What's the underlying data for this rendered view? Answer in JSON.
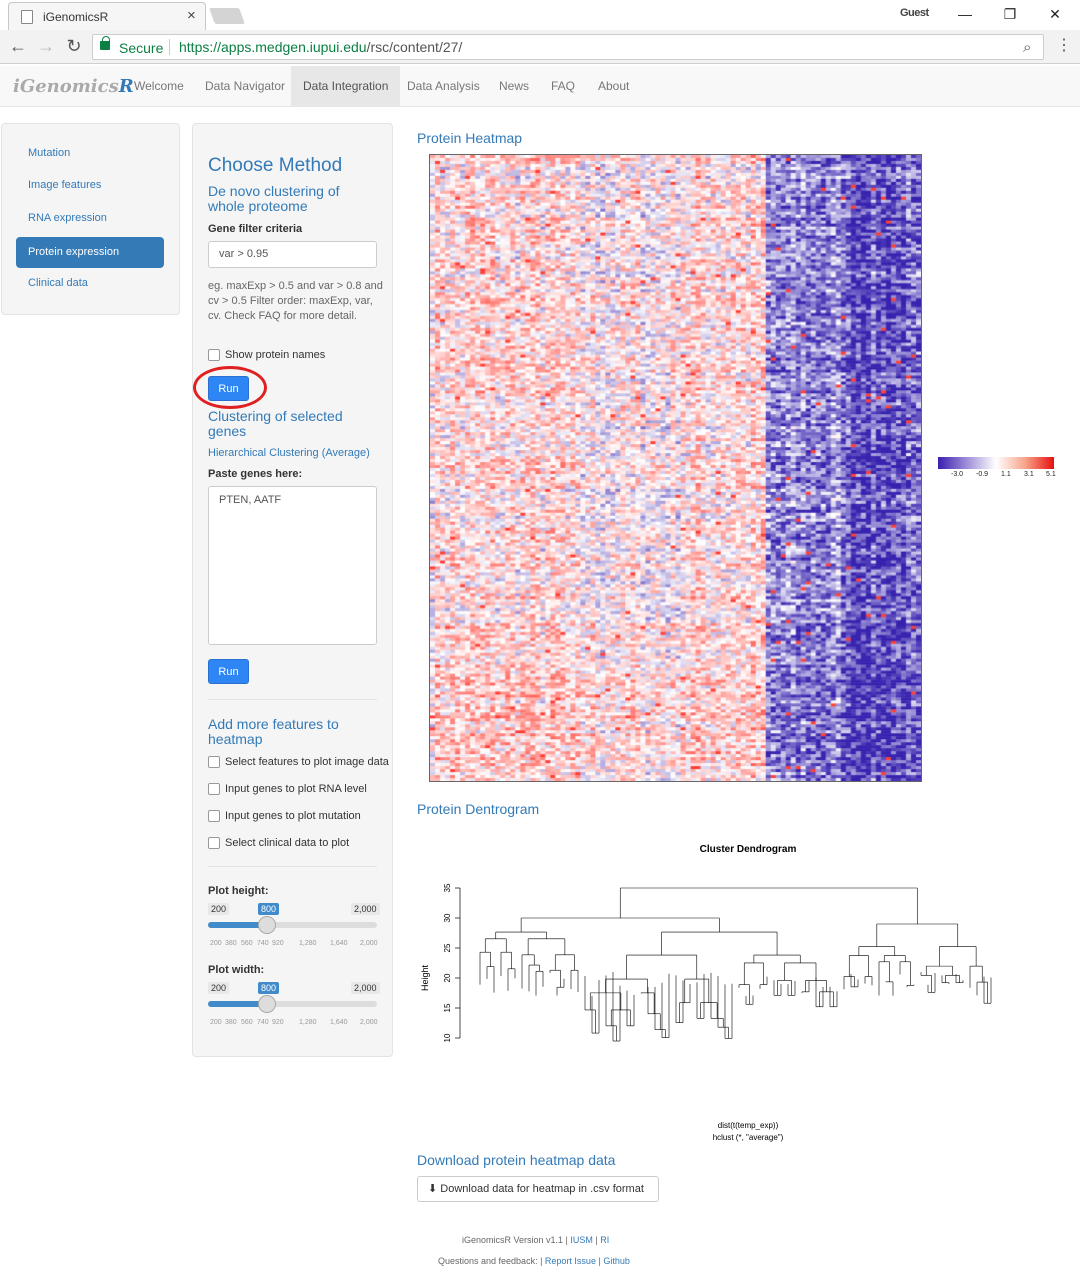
{
  "browser": {
    "tab_title": "iGenomicsR",
    "guest_label": "Guest",
    "secure_label": "Secure",
    "url_host": "https://apps.medgen.iupui.edu",
    "url_path": "/rsc/content/27/"
  },
  "navbar": {
    "brand_prefix": "iGenomics",
    "brand_suffix": "R",
    "items": [
      "Welcome",
      "Data Navigator",
      "Data Integration",
      "Data Analysis",
      "News",
      "FAQ",
      "About"
    ],
    "active": "Data Integration"
  },
  "sidebar": {
    "items": [
      "Mutation",
      "Image features",
      "RNA expression",
      "Protein expression",
      "Clinical data"
    ],
    "active": "Protein expression"
  },
  "panel": {
    "title": "Choose Method",
    "denovo_heading": "De novo clustering of whole proteome",
    "filter_label": "Gene filter criteria",
    "filter_value": "var > 0.95",
    "filter_help": "eg. maxExp > 0.5 and var > 0.8 and cv > 0.5 Filter order: maxExp, var, cv. Check FAQ for more detail.",
    "show_names_label": "Show protein names",
    "run_label": "Run",
    "selected_heading": "Clustering of selected genes",
    "hier_label": "Hierarchical Clustering (Average)",
    "paste_label": "Paste genes here:",
    "paste_value": "PTEN, AATF",
    "run2_label": "Run",
    "add_heading": "Add more features to heatmap",
    "add_options": [
      "Select features to plot image data",
      "Input genes to plot RNA level",
      "Input genes to plot mutation",
      "Select clinical data to plot"
    ],
    "height_label": "Plot height:",
    "width_label": "Plot width:",
    "slider_min": "200",
    "slider_max": "2,000",
    "height_value": "800",
    "width_value": "800",
    "slider_ticks": [
      "200",
      "380",
      "560",
      "740",
      "920",
      "1,280",
      "1,640",
      "2,000"
    ],
    "height_fraction": 0.333,
    "width_fraction": 0.333
  },
  "heatmap": {
    "title": "Protein Heatmap",
    "legend_ticks": [
      "-3.0",
      "-0.9",
      "1.1",
      "3.1",
      "5.1"
    ],
    "colors": {
      "low": "#3b1fb0",
      "mid": "#ffffff",
      "high": "#e81010"
    }
  },
  "dendrogram": {
    "section_title": "Protein Dentrogram",
    "title": "Cluster Dendrogram",
    "ylabel": "Height",
    "yticks": [
      "10",
      "15",
      "20",
      "25",
      "30",
      "35"
    ],
    "xlabel_1": "dist(t(temp_exp))",
    "xlabel_2": "hclust (*, \"average\")"
  },
  "download": {
    "heading": "Download protein heatmap data",
    "button_label": "Download data for heatmap in .csv format"
  },
  "footer": {
    "line1_prefix": "iGenomicsR Version v1.1 |",
    "line1_link1": "IUSM",
    "line1_sep": "|",
    "line1_link2": "RI",
    "line2_prefix": "Questions and feedback: |",
    "line2_link1": "Report Issue",
    "line2_sep": "|",
    "line2_link2": "Github"
  }
}
